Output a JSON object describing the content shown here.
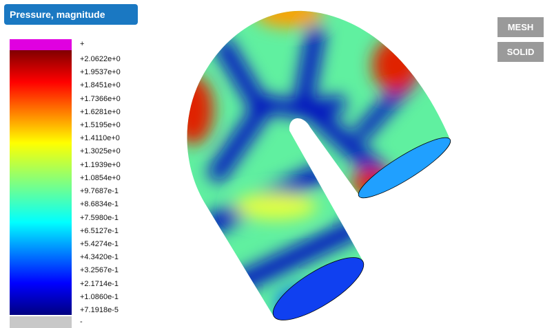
{
  "header": {
    "title": "Pressure, magnitude"
  },
  "legend": {
    "over_label": "+",
    "under_label": "-",
    "labels": [
      "+2.0622e+0",
      "+1.9537e+0",
      "+1.8451e+0",
      "+1.7366e+0",
      "+1.6281e+0",
      "+1.5195e+0",
      "+1.4110e+0",
      "+1.3025e+0",
      "+1.1939e+0",
      "+1.0854e+0",
      "+9.7687e-1",
      "+8.6834e-1",
      "+7.5980e-1",
      "+6.5127e-1",
      "+5.4274e-1",
      "+4.3420e-1",
      "+3.2567e-1",
      "+2.1714e-1",
      "+1.0860e-1",
      "+7.1918e-5"
    ]
  },
  "buttons": [
    "MESH",
    "SOLID"
  ]
}
